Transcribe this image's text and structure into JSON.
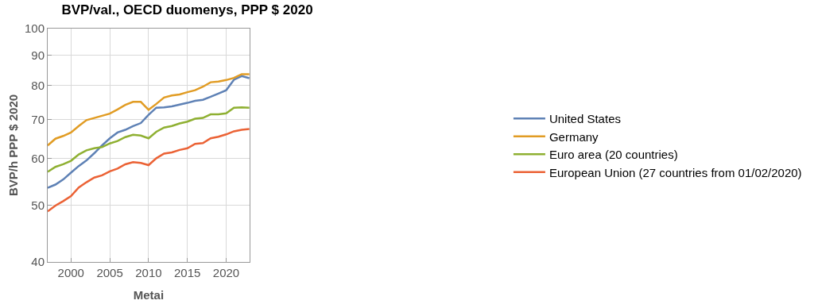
{
  "chart_data": {
    "type": "line",
    "title": "BVP/val., OECD duomenys, PPP $ 2020",
    "xlabel": "Metai",
    "ylabel": "BVP/h PPP $ 2020",
    "x": [
      1997,
      1998,
      1999,
      2000,
      2001,
      2002,
      2003,
      2004,
      2005,
      2006,
      2007,
      2008,
      2009,
      2010,
      2011,
      2012,
      2013,
      2014,
      2015,
      2016,
      2017,
      2018,
      2019,
      2020,
      2021,
      2022,
      2023
    ],
    "series": [
      {
        "name": "United States",
        "color": "#5e81b5",
        "values": [
          53.5,
          54.2,
          55.3,
          56.8,
          58.3,
          59.6,
          61.3,
          63.2,
          65.0,
          66.5,
          67.2,
          68.2,
          69.0,
          71.3,
          73.3,
          73.4,
          73.7,
          74.2,
          74.7,
          75.3,
          75.6,
          76.5,
          77.5,
          78.5,
          81.8,
          83.0,
          82.3
        ]
      },
      {
        "name": "Germany",
        "color": "#e19c24",
        "values": [
          63.2,
          64.9,
          65.6,
          66.5,
          68.2,
          69.8,
          70.4,
          71.0,
          71.6,
          72.8,
          74.1,
          75.0,
          75.0,
          72.7,
          74.4,
          76.3,
          76.9,
          77.2,
          77.9,
          78.5,
          79.6,
          81.0,
          81.2,
          81.7,
          82.4,
          83.6,
          83.6
        ]
      },
      {
        "name": "Euro area (20 countries)",
        "color": "#8fb032",
        "values": [
          57.0,
          58.1,
          58.7,
          59.5,
          61.0,
          62.0,
          62.5,
          62.8,
          63.7,
          64.3,
          65.3,
          65.9,
          65.7,
          65.0,
          66.7,
          67.8,
          68.2,
          68.9,
          69.4,
          70.2,
          70.4,
          71.4,
          71.4,
          71.7,
          73.3,
          73.4,
          73.3
        ]
      },
      {
        "name": "European Union (27 countries from 01/02/2020)",
        "color": "#eb6235",
        "values": [
          48.8,
          49.9,
          50.8,
          51.8,
          53.6,
          54.7,
          55.7,
          56.2,
          57.1,
          57.7,
          58.7,
          59.2,
          59.0,
          58.5,
          60.1,
          61.2,
          61.5,
          62.1,
          62.5,
          63.6,
          63.8,
          65.0,
          65.4,
          66.0,
          66.8,
          67.2,
          67.4
        ]
      }
    ],
    "xlim": [
      1997,
      2023
    ],
    "xticks": [
      2000,
      2005,
      2010,
      2015,
      2020
    ],
    "ylim": [
      40,
      100
    ],
    "yticks": [
      40,
      50,
      60,
      70,
      80,
      90,
      100
    ],
    "log": "y",
    "grid": true,
    "legend": "right",
    "marker": "none",
    "line_style": "solid"
  }
}
